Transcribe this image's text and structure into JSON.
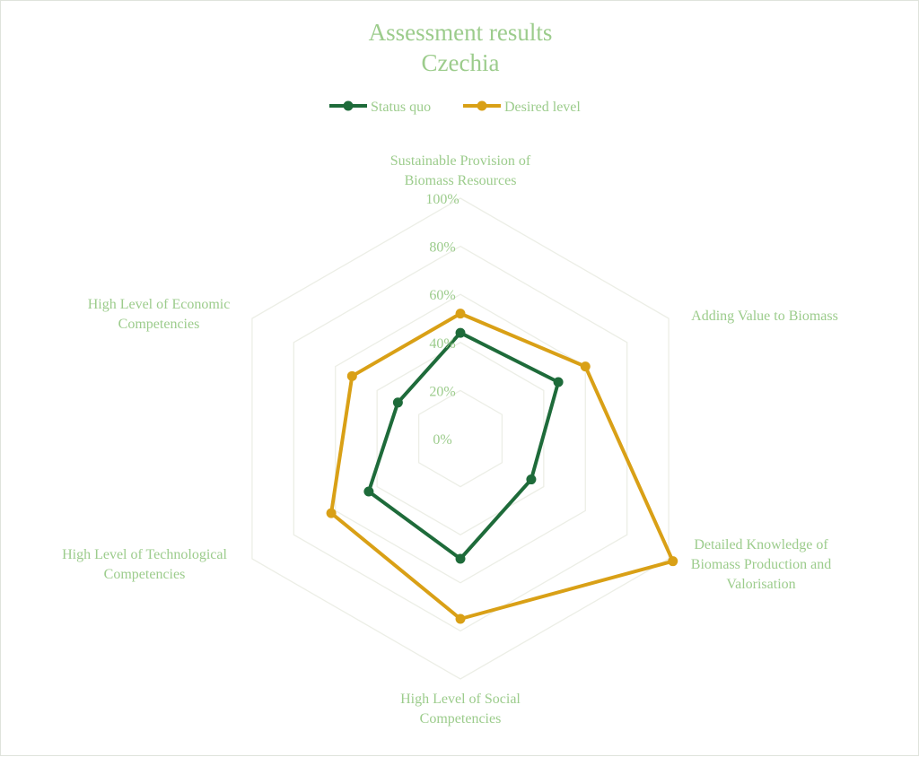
{
  "chart_data": {
    "type": "radar",
    "title": "Assessment results",
    "subtitle": "Czechia",
    "axes": [
      [
        "Sustainable Provision of",
        "Biomass Resources"
      ],
      [
        "Adding Value to Biomass"
      ],
      [
        "Detailed Knowledge of",
        "Biomass Production and",
        "Valorisation"
      ],
      [
        "High Level of Social",
        "Competencies"
      ],
      [
        "High Level of Technological",
        "Competencies"
      ],
      [
        "High Level of Economic",
        "Competencies"
      ]
    ],
    "ticks": [
      "0%",
      "20%",
      "40%",
      "60%",
      "80%",
      "100%"
    ],
    "range": [
      0,
      100
    ],
    "grid": true,
    "legend_position": "top",
    "series": [
      {
        "name": "Status quo",
        "color": "#1e6b3a",
        "values": [
          44,
          47,
          34,
          50,
          44,
          30
        ]
      },
      {
        "name": "Desired level",
        "color": "#d9a016",
        "values": [
          52,
          60,
          102,
          75,
          62,
          52
        ]
      }
    ],
    "colors": {
      "text": "#9ccc8c",
      "grid": "#eceee6"
    }
  }
}
